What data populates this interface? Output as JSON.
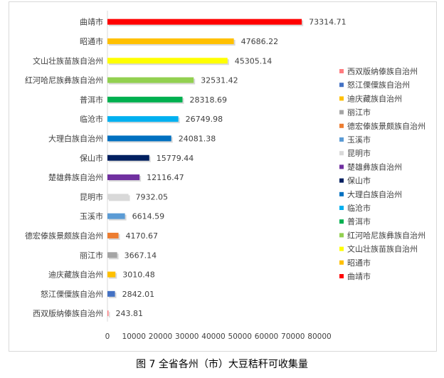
{
  "caption": "图 7  全省各州（市）大豆秸秆可收集量",
  "chart_data": {
    "type": "bar",
    "orientation": "horizontal",
    "categories": [
      "曲靖市",
      "昭通市",
      "文山壮族苗族自治州",
      "红河哈尼族彝族自治州",
      "普洱市",
      "临沧市",
      "大理白族自治州",
      "保山市",
      "楚雄彝族自治州",
      "昆明市",
      "玉溪市",
      "德宏傣族景颇族自治州",
      "丽江市",
      "迪庆藏族自治州",
      "怒江傈僳族自治州",
      "西双版纳傣族自治州"
    ],
    "values": [
      73314.71,
      47686.22,
      45305.14,
      32531.42,
      28318.69,
      26749.98,
      24081.38,
      15779.44,
      12116.47,
      7932.05,
      6614.59,
      4170.67,
      3667.14,
      3010.48,
      2842.01,
      243.81
    ],
    "value_labels": [
      "73314.71",
      "47686.22",
      "45305.14",
      "32531.42",
      "28318.69",
      "26749.98",
      "24081.38",
      "15779.44",
      "12116.47",
      "7932.05",
      "6614.59",
      "4170.67",
      "3667.14",
      "3010.48",
      "2842.01",
      "243.81"
    ],
    "colors": [
      "#ff0000",
      "#ffc000",
      "#ffff00",
      "#92d050",
      "#00b050",
      "#00b0f0",
      "#0070c0",
      "#002060",
      "#7030a0",
      "#d9d9d9",
      "#5b9bd5",
      "#ed7d31",
      "#a5a5a5",
      "#ffc000",
      "#4472c4",
      "#ff7c80"
    ],
    "xlim": [
      0,
      80000
    ],
    "xticks": [
      "0",
      "10000",
      "20000",
      "30000",
      "40000",
      "50000",
      "60000",
      "70000",
      "80000"
    ],
    "legend_position": "right",
    "legend": [
      "西双版纳傣族自治州",
      "怒江傈僳族自治州",
      "迪庆藏族自治州",
      "丽江市",
      "德宏傣族景颇族自治州",
      "玉溪市",
      "昆明市",
      "楚雄彝族自治州",
      "保山市",
      "大理白族自治州",
      "临沧市",
      "普洱市",
      "红河哈尼族彝族自治州",
      "文山壮族苗族自治州",
      "昭通市",
      "曲靖市"
    ],
    "legend_colors": [
      "#ff7c80",
      "#4472c4",
      "#ffc000",
      "#a5a5a5",
      "#ed7d31",
      "#5b9bd5",
      "#d9d9d9",
      "#7030a0",
      "#002060",
      "#0070c0",
      "#00b0f0",
      "#00b050",
      "#92d050",
      "#ffff00",
      "#ffc000",
      "#ff0000"
    ],
    "grid": false
  }
}
